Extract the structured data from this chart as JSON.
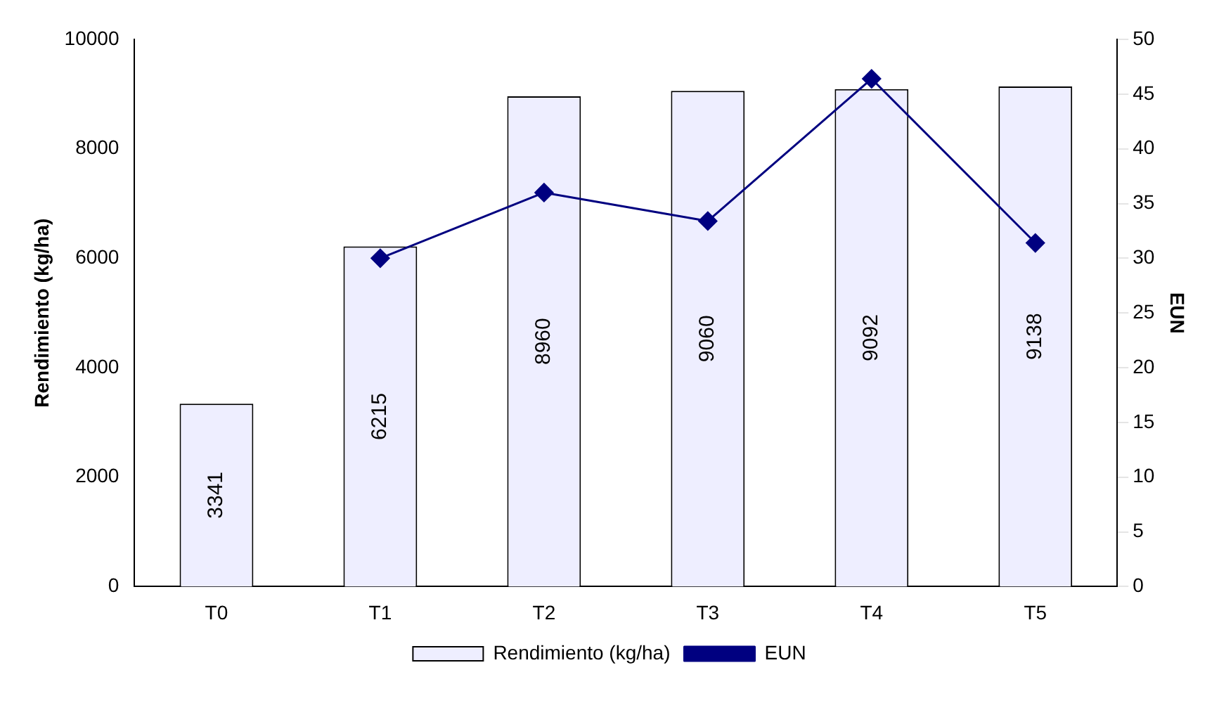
{
  "chart_data": {
    "type": "bar",
    "categories": [
      "T0",
      "T1",
      "T2",
      "T3",
      "T4",
      "T5"
    ],
    "series": [
      {
        "name": "Rendimiento (kg/ha)",
        "color": "#eeeeff",
        "values": [
          3341,
          6215,
          8960,
          9060,
          9092,
          9138
        ],
        "value_labels": [
          "3341",
          "6215",
          "8960",
          "9060",
          "9092",
          "9138"
        ]
      },
      {
        "name": "EUN",
        "type": "line",
        "axis": "y2",
        "color": "#000080",
        "marker": "diamond",
        "values": [
          null,
          30.0,
          36.0,
          33.4,
          46.4,
          31.4
        ]
      }
    ],
    "ylabel": "Rendimiento (kg/ha)",
    "y2label": "EUN",
    "ylim": [
      0,
      10000
    ],
    "yticks": [
      0,
      2000,
      4000,
      6000,
      8000,
      10000
    ],
    "y2lim": [
      0,
      50
    ],
    "y2ticks": [
      0,
      5,
      10,
      15,
      20,
      25,
      30,
      35,
      40,
      45,
      50
    ],
    "legend": "bottom",
    "grid": false
  }
}
